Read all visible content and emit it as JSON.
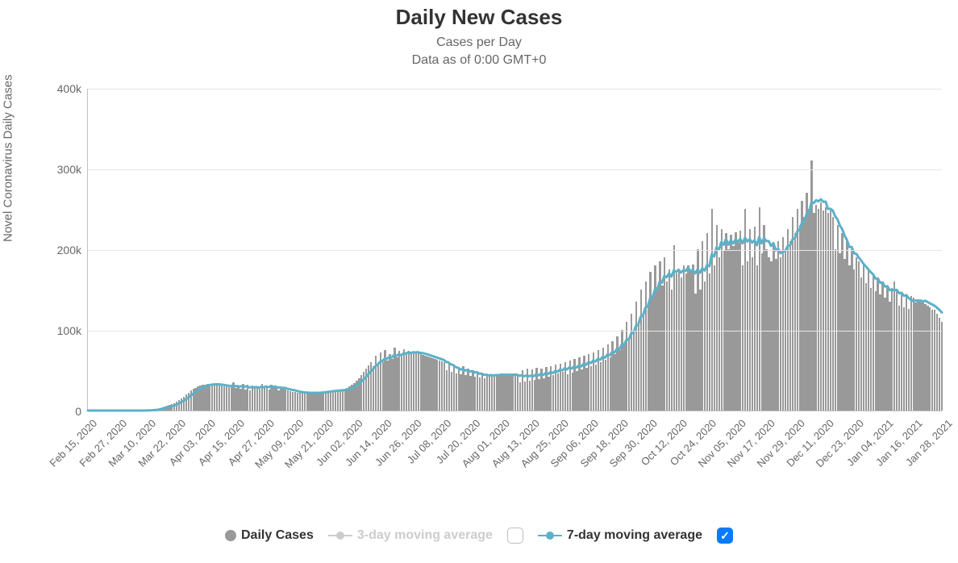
{
  "chart": {
    "type": "bar+line",
    "title": "Daily New Cases",
    "subtitle1": "Cases per Day",
    "subtitle2": "Data as of 0:00 GMT+0",
    "ylabel": "Novel Coronavirus Daily Cases",
    "background_color": "#ffffff",
    "grid_color": "#e6e6e6",
    "axis_color": "#c0c0c0",
    "text_color": "#666666",
    "title_color": "#333333",
    "title_fontsize": 26,
    "subtitle_fontsize": 16,
    "label_fontsize": 15,
    "tick_fontsize": 14,
    "ylim": [
      0,
      400000
    ],
    "ytick_step": 100000,
    "yticks": [
      {
        "value": 0,
        "label": "0"
      },
      {
        "value": 100000,
        "label": "100k"
      },
      {
        "value": 200000,
        "label": "200k"
      },
      {
        "value": 300000,
        "label": "300k"
      },
      {
        "value": 400000,
        "label": "400k"
      }
    ],
    "xtick_labels": [
      "Feb 15, 2020",
      "Feb 27, 2020",
      "Mar 10, 2020",
      "Mar 22, 2020",
      "Apr 03, 2020",
      "Apr 15, 2020",
      "Apr 27, 2020",
      "May 09, 2020",
      "May 21, 2020",
      "Jun 02, 2020",
      "Jun 14, 2020",
      "Jun 26, 2020",
      "Jul 08, 2020",
      "Jul 20, 2020",
      "Aug 01, 2020",
      "Aug 13, 2020",
      "Aug 25, 2020",
      "Sep 06, 2020",
      "Sep 18, 2020",
      "Sep 30, 2020",
      "Oct 12, 2020",
      "Oct 24, 2020",
      "Nov 05, 2020",
      "Nov 17, 2020",
      "Nov 29, 2020",
      "Dec 11, 2020",
      "Dec 23, 2020",
      "Jan 04, 2021",
      "Jan 16, 2021",
      "Jan 28, 2021"
    ],
    "xtick_rotation": -45,
    "bar_color": "#999999",
    "daily_cases": [
      0,
      0,
      0,
      0,
      0,
      0,
      0,
      0,
      0,
      0,
      0,
      0,
      0,
      0,
      0,
      0,
      0,
      0,
      0,
      0,
      10,
      30,
      60,
      120,
      200,
      400,
      700,
      1100,
      1600,
      2200,
      2900,
      3700,
      4600,
      5600,
      6800,
      8000,
      9500,
      11000,
      13000,
      15000,
      17500,
      20000,
      22500,
      25000,
      27000,
      28500,
      30000,
      31000,
      32000,
      32500,
      33000,
      33500,
      33000,
      32500,
      32000,
      31500,
      31000,
      30500,
      30000,
      29500,
      29000,
      35000,
      28000,
      30000,
      27000,
      33000,
      26000,
      32000,
      25000,
      31000,
      28000,
      30000,
      27000,
      33000,
      29000,
      31000,
      26000,
      32000,
      28000,
      30000,
      25000,
      29000,
      27000,
      26000,
      25000,
      24000,
      23500,
      23000,
      22500,
      22000,
      22000,
      22000,
      22000,
      22000,
      22000,
      22000,
      22000,
      22500,
      23000,
      23500,
      24000,
      24500,
      25000,
      25000,
      25000,
      25000,
      25000,
      26000,
      27000,
      28000,
      30000,
      32000,
      34000,
      37000,
      40000,
      44000,
      48000,
      52000,
      56000,
      60000,
      55000,
      68000,
      58000,
      72000,
      60000,
      75000,
      62000,
      70000,
      64000,
      78000,
      66000,
      74000,
      68000,
      76000,
      70000,
      74000,
      72000,
      73000,
      72000,
      71000,
      70000,
      69000,
      68000,
      67000,
      66000,
      65000,
      64000,
      63000,
      62000,
      61000,
      60000,
      50000,
      58000,
      48000,
      56000,
      46000,
      54000,
      45000,
      55000,
      44000,
      52000,
      43000,
      50000,
      42000,
      48000,
      41000,
      46000,
      40000,
      45000,
      44000,
      45000,
      44000,
      45000,
      44000,
      45000,
      44000,
      45000,
      44000,
      45000,
      44000,
      45000,
      44000,
      35000,
      50000,
      36000,
      52000,
      37000,
      51000,
      38000,
      53000,
      39000,
      52000,
      40000,
      54000,
      42000,
      55000,
      44000,
      57000,
      46000,
      58000,
      48000,
      60000,
      45000,
      62000,
      47000,
      64000,
      49000,
      66000,
      51000,
      68000,
      53000,
      70000,
      55000,
      72000,
      57000,
      75000,
      60000,
      78000,
      63000,
      82000,
      66000,
      86000,
      70000,
      92000,
      75000,
      100000,
      82000,
      110000,
      90000,
      120000,
      100000,
      135000,
      110000,
      150000,
      120000,
      160000,
      130000,
      172000,
      140000,
      180000,
      150000,
      185000,
      155000,
      190000,
      160000,
      175000,
      150000,
      205000,
      170000,
      175000,
      165000,
      180000,
      170000,
      180000,
      172000,
      181000,
      145000,
      200000,
      150000,
      210000,
      160000,
      220000,
      170000,
      250000,
      180000,
      230000,
      190000,
      225000,
      198000,
      220000,
      200000,
      218000,
      204000,
      221000,
      208000,
      223000,
      180000,
      250000,
      185000,
      225000,
      190000,
      228000,
      180000,
      252000,
      195000,
      230000,
      200000,
      190000,
      185000,
      205000,
      188000,
      210000,
      190000,
      215000,
      198000,
      225000,
      210000,
      240000,
      220000,
      250000,
      230000,
      260000,
      240000,
      270000,
      250000,
      310000,
      245000,
      255000,
      250000,
      258000,
      248000,
      252000,
      245000,
      248000,
      240000,
      200000,
      230000,
      195000,
      220000,
      188000,
      210000,
      180000,
      200000,
      175000,
      190000,
      185000,
      165000,
      180000,
      158000,
      175000,
      152000,
      170000,
      148000,
      165000,
      144000,
      160000,
      140000,
      155000,
      135000,
      152000,
      160000,
      148000,
      130000,
      145000,
      128000,
      142000,
      126000,
      142000,
      140000,
      134000,
      138000,
      136000,
      134000,
      132000,
      130000,
      128000,
      125000,
      125000,
      120000,
      115000,
      110000
    ],
    "moving_avg_7": {
      "color": "#5bb1c9",
      "line_width": 3,
      "marker_radius": 5
    },
    "legend": {
      "items": [
        {
          "key": "daily",
          "label": "Daily Cases",
          "type": "dot",
          "color": "#999999",
          "label_color": "#333333",
          "enabled": true,
          "has_checkbox": false
        },
        {
          "key": "ma3",
          "label": "3-day moving average",
          "type": "line-dot",
          "color": "#cccccc",
          "label_color": "#cccccc",
          "enabled": false,
          "has_checkbox": true,
          "checked": false
        },
        {
          "key": "ma7",
          "label": "7-day moving average",
          "type": "line-dot",
          "color": "#5bb1c9",
          "label_color": "#333333",
          "enabled": true,
          "has_checkbox": true,
          "checked": true
        }
      ],
      "fontsize": 16,
      "checkbox_checked_color": "#0a7aff"
    }
  }
}
